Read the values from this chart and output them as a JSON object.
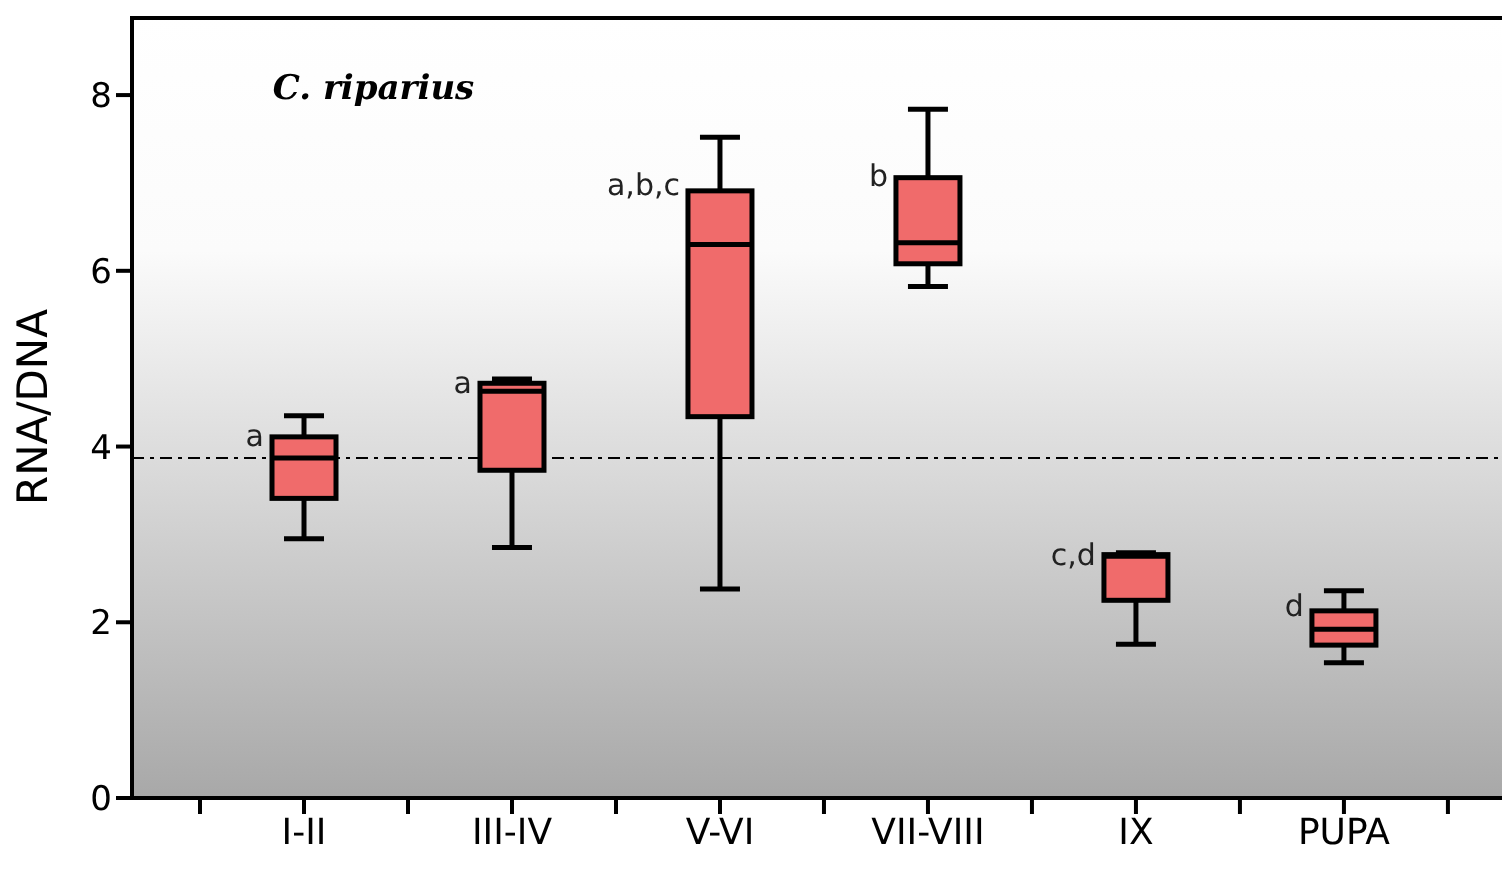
{
  "chart_data": {
    "type": "box",
    "title": "C. riparius",
    "ylabel": "RNA/DNA",
    "categories": [
      "I-II",
      "III-IV",
      "V-VI",
      "VII-VIII",
      "IX",
      "PUPA"
    ],
    "color": "#f06b6b",
    "boxes": [
      {
        "low": 2.95,
        "q1": 3.41,
        "median": 3.87,
        "q3": 4.11,
        "high": 4.35
      },
      {
        "low": 2.85,
        "q1": 3.73,
        "median": 4.63,
        "q3": 4.72,
        "high": 4.77
      },
      {
        "low": 2.38,
        "q1": 4.34,
        "median": 6.3,
        "q3": 6.91,
        "high": 7.52
      },
      {
        "low": 5.82,
        "q1": 6.08,
        "median": 6.32,
        "q3": 7.06,
        "high": 7.84
      },
      {
        "low": 1.75,
        "q1": 2.25,
        "median": 2.75,
        "q3": 2.77,
        "high": 2.79
      },
      {
        "low": 1.54,
        "q1": 1.74,
        "median": 1.92,
        "q3": 2.13,
        "high": 2.36
      }
    ],
    "ylim": [
      0,
      8.9
    ],
    "yticks": [
      0,
      2,
      4,
      6,
      8
    ],
    "ref_lines": [
      {
        "axis": "y",
        "value": 3.87,
        "line_style": "dashdot",
        "color": "#000000"
      }
    ],
    "annotations": [
      {
        "text": "a",
        "x": "I-II",
        "y": 4.1
      },
      {
        "text": "a",
        "x": "III-IV",
        "y": 4.7
      },
      {
        "text": "a,b,c",
        "x": "V-VI",
        "y": 6.96
      },
      {
        "text": "b",
        "x": "VII-VIII",
        "y": 7.06
      },
      {
        "text": "c,d",
        "x": "IX",
        "y": 2.74
      },
      {
        "text": "d",
        "x": "PUPA",
        "y": 2.17
      }
    ],
    "grid": false
  }
}
